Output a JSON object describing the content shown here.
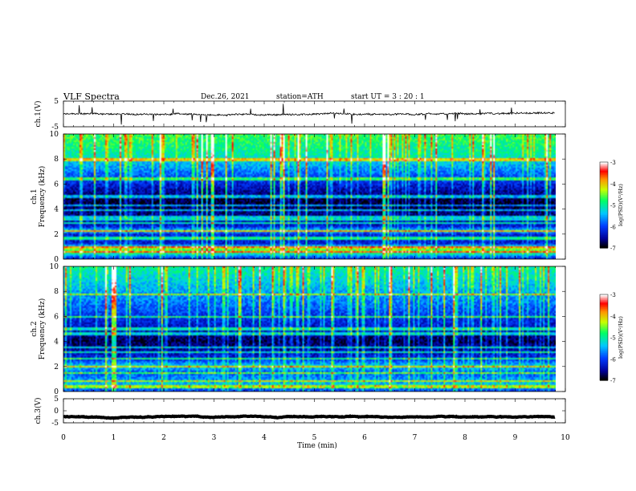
{
  "header": {
    "title": "VLF  Spectra",
    "date": "Dec.26, 2021",
    "station": "station=ATH",
    "start": "start  UT  =   3  : 20 : 1"
  },
  "chart_data": [
    {
      "type": "line",
      "name": "ch1-waveform",
      "ylabel": "ch.1(V)",
      "ylim": [
        -5,
        5
      ],
      "yticks": [
        "5",
        "-5"
      ],
      "xlim": [
        0,
        10
      ],
      "trace": {
        "mean": -0.1,
        "noise": 0.6,
        "duration_min": 9.8
      },
      "color": "#000000"
    },
    {
      "type": "heatmap",
      "name": "ch1-spectrogram",
      "ylabel": "ch.1\nFrequency  (kHz)",
      "ylim": [
        0,
        10
      ],
      "yticks": [
        "0",
        "2",
        "4",
        "6",
        "8",
        "10"
      ],
      "xlim": [
        0,
        10
      ],
      "duration_min": 9.8,
      "colorbar": {
        "label": "log(PSD)(V²/Hz)",
        "ticks": [
          "-3",
          "-4",
          "-5",
          "-6",
          "-7"
        ],
        "range": [
          -7,
          -3
        ]
      },
      "freq_profile_kHz": [
        {
          "f": 0.0,
          "v": -6.2
        },
        {
          "f": 0.4,
          "v": -5.0
        },
        {
          "f": 0.8,
          "v": -4.4
        },
        {
          "f": 1.2,
          "v": -6.3
        },
        {
          "f": 2.0,
          "v": -6.2
        },
        {
          "f": 2.2,
          "v": -5.2
        },
        {
          "f": 2.6,
          "v": -6.3
        },
        {
          "f": 3.5,
          "v": -6.6
        },
        {
          "f": 4.5,
          "v": -6.9
        },
        {
          "f": 5.5,
          "v": -6.5
        },
        {
          "f": 6.5,
          "v": -6.0
        },
        {
          "f": 7.5,
          "v": -5.5
        },
        {
          "f": 8.5,
          "v": -5.0
        },
        {
          "f": 10.0,
          "v": -4.7
        }
      ],
      "tone_lines_kHz": [
        0.5,
        0.9,
        1.6,
        2.2,
        2.85,
        3.2,
        3.4,
        3.9,
        4.3,
        5.0,
        6.45,
        8.0
      ]
    },
    {
      "type": "heatmap",
      "name": "ch2-spectrogram",
      "ylabel": "ch.2\nFrequency  (kHz)",
      "ylim": [
        0,
        10
      ],
      "yticks": [
        "0",
        "2",
        "4",
        "6",
        "8",
        "10"
      ],
      "xlim": [
        0,
        10
      ],
      "duration_min": 9.8,
      "colorbar": {
        "label": "log(PSD)(V²/Hz)",
        "ticks": [
          "-3",
          "-4",
          "-5",
          "-6",
          "-7"
        ],
        "range": [
          -7,
          -3
        ]
      },
      "freq_profile_kHz": [
        {
          "f": 0.0,
          "v": -6.0
        },
        {
          "f": 0.5,
          "v": -5.4
        },
        {
          "f": 1.0,
          "v": -5.7
        },
        {
          "f": 1.5,
          "v": -5.9
        },
        {
          "f": 2.0,
          "v": -5.3
        },
        {
          "f": 2.5,
          "v": -6.1
        },
        {
          "f": 3.0,
          "v": -6.4
        },
        {
          "f": 4.0,
          "v": -6.8
        },
        {
          "f": 5.0,
          "v": -6.4
        },
        {
          "f": 6.0,
          "v": -6.1
        },
        {
          "f": 7.0,
          "v": -5.8
        },
        {
          "f": 8.5,
          "v": -5.4
        },
        {
          "f": 10.0,
          "v": -5.0
        }
      ],
      "tone_lines_kHz": [
        0.3,
        0.8,
        1.4,
        1.95,
        2.6,
        3.1,
        3.5,
        4.6,
        5.0,
        6.0,
        7.8
      ]
    },
    {
      "type": "line",
      "name": "ch3-waveform",
      "ylabel": "ch.3(V)",
      "ylim": [
        -5,
        5
      ],
      "yticks": [
        "5",
        "0",
        "-5"
      ],
      "xlim": [
        0,
        10
      ],
      "trace": {
        "mean": -2.5,
        "noise": 0.12,
        "duration_min": 9.8
      },
      "color": "#000000"
    }
  ],
  "x_axis": {
    "label": "Time  (min)",
    "ticks": [
      "0",
      "1",
      "2",
      "3",
      "4",
      "5",
      "6",
      "7",
      "8",
      "9",
      "10"
    ]
  }
}
